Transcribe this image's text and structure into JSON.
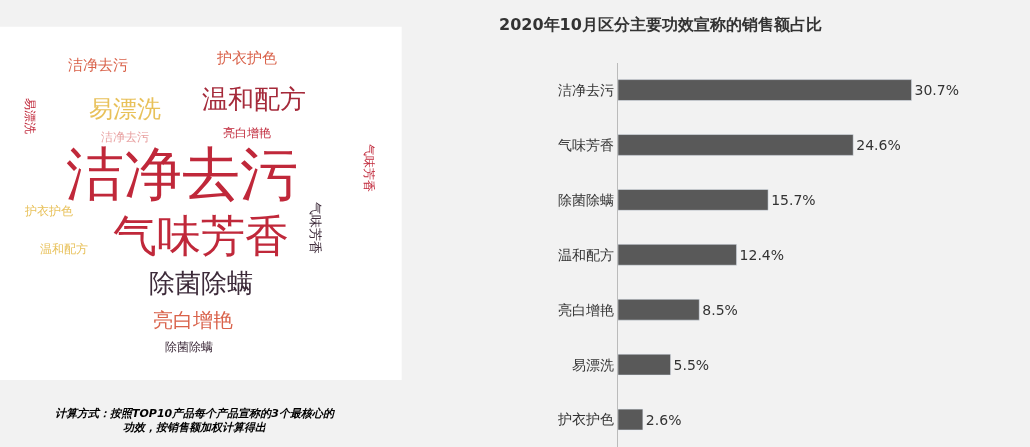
{
  "chart_data": [
    {
      "type": "other",
      "annotations": [
        "洁净去污",
        "气味芳香",
        "除菌除螨",
        "温和配方",
        "易漂洗",
        "亮白增艳",
        "洁净去污",
        "护衣护色",
        "易漂洗",
        "洁净去污",
        "亮白增艳",
        "气味芳香",
        "护衣护色",
        "温和配方",
        "除菌除螨",
        "气味芳香",
        "计算方式：按照TOP10产品每个产品宣称的3个最核心的功效，按销售额加权计算得出"
      ],
      "colors": [
        "#c0283a",
        "#c0283a",
        "#3d2b3a",
        "#a52a3a",
        "#e8c15a",
        "#d9624a",
        "#d9624a",
        "#d9624a",
        "#c0283a",
        "#e8a0a0",
        "#c0283a",
        "#3d2b3a",
        "#e8c15a",
        "#e8c15a",
        "#3d2b3a",
        "#c0283a",
        "#000000"
      ]
    },
    {
      "type": "bar",
      "orientation": "horizontal",
      "title": "2020年10月区分主要功效宣称的销售额占比",
      "categories": [
        "洁净去污",
        "气味芳香",
        "除菌除螨",
        "温和配方",
        "亮白增艳",
        "易漂洗",
        "护衣护色"
      ],
      "values": [
        30.7,
        24.6,
        15.7,
        12.4,
        8.5,
        5.5,
        2.6
      ],
      "value_labels": [
        "30.7%",
        "24.6%",
        "15.7%",
        "12.4%",
        "8.5%",
        "5.5%",
        "2.6%"
      ],
      "color": "#595959",
      "tick_labels": "y",
      "grid": false,
      "legend": false
    }
  ]
}
